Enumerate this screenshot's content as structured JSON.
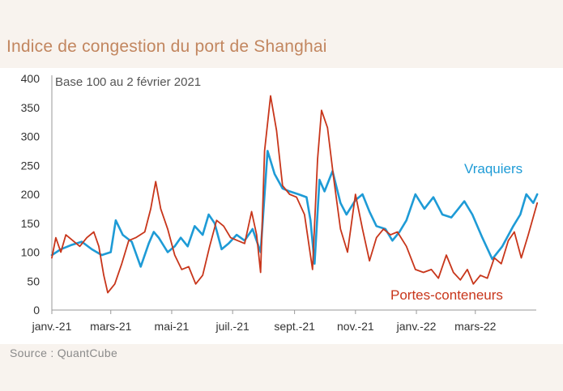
{
  "title": "Indice de congestion du port de Shanghai",
  "source": "Source :  QuantCube",
  "colors": {
    "vraquiers": "#1e9bd6",
    "portes_conteneurs": "#c8361b",
    "title": "#c2865f",
    "background": "#f8f3ee"
  },
  "chart_data": {
    "type": "line",
    "title": "Indice de congestion du port de Shanghai",
    "annotation": "Base 100 au 2 février 2021",
    "xlabel": "",
    "ylabel": "",
    "ylim": [
      0,
      400
    ],
    "xlim": [
      "2021-01-01",
      "2022-05-01"
    ],
    "yticks": [
      "0",
      "50",
      "100",
      "150",
      "200",
      "250",
      "300",
      "350",
      "400"
    ],
    "xticks": [
      {
        "date": "2021-01-01",
        "label": "janv.-21"
      },
      {
        "date": "2021-03-01",
        "label": "mars-21"
      },
      {
        "date": "2021-05-01",
        "label": "mai-21"
      },
      {
        "date": "2021-07-01",
        "label": "juil.-21"
      },
      {
        "date": "2021-09-01",
        "label": "sept.-21"
      },
      {
        "date": "2021-11-01",
        "label": "nov.-21"
      },
      {
        "date": "2022-01-01",
        "label": "janv.-22"
      },
      {
        "date": "2022-03-01",
        "label": "mars-22"
      }
    ],
    "grid": false,
    "legend": "inline labels",
    "series": [
      {
        "name": "Vraquiers",
        "color": "#1e9bd6",
        "points": [
          [
            "2021-01-01",
            95
          ],
          [
            "2021-01-10",
            105
          ],
          [
            "2021-01-20",
            112
          ],
          [
            "2021-01-31",
            118
          ],
          [
            "2021-02-10",
            105
          ],
          [
            "2021-02-20",
            95
          ],
          [
            "2021-03-01",
            100
          ],
          [
            "2021-03-06",
            155
          ],
          [
            "2021-03-13",
            130
          ],
          [
            "2021-03-22",
            118
          ],
          [
            "2021-03-31",
            75
          ],
          [
            "2021-04-08",
            115
          ],
          [
            "2021-04-13",
            135
          ],
          [
            "2021-04-18",
            125
          ],
          [
            "2021-04-27",
            100
          ],
          [
            "2021-05-04",
            110
          ],
          [
            "2021-05-10",
            125
          ],
          [
            "2021-05-17",
            110
          ],
          [
            "2021-05-24",
            145
          ],
          [
            "2021-06-01",
            130
          ],
          [
            "2021-06-07",
            165
          ],
          [
            "2021-06-13",
            150
          ],
          [
            "2021-06-20",
            105
          ],
          [
            "2021-06-27",
            115
          ],
          [
            "2021-07-05",
            130
          ],
          [
            "2021-07-13",
            120
          ],
          [
            "2021-07-21",
            140
          ],
          [
            "2021-07-29",
            100
          ],
          [
            "2021-08-05",
            275
          ],
          [
            "2021-08-12",
            235
          ],
          [
            "2021-08-20",
            210
          ],
          [
            "2021-08-27",
            205
          ],
          [
            "2021-09-05",
            200
          ],
          [
            "2021-09-13",
            195
          ],
          [
            "2021-09-17",
            155
          ],
          [
            "2021-09-21",
            80
          ],
          [
            "2021-09-26",
            225
          ],
          [
            "2021-10-01",
            205
          ],
          [
            "2021-10-09",
            240
          ],
          [
            "2021-10-17",
            185
          ],
          [
            "2021-10-23",
            165
          ],
          [
            "2021-11-01",
            190
          ],
          [
            "2021-11-08",
            200
          ],
          [
            "2021-11-15",
            170
          ],
          [
            "2021-11-22",
            145
          ],
          [
            "2021-12-01",
            140
          ],
          [
            "2021-12-08",
            120
          ],
          [
            "2021-12-15",
            135
          ],
          [
            "2021-12-22",
            155
          ],
          [
            "2021-12-31",
            200
          ],
          [
            "2022-01-09",
            175
          ],
          [
            "2022-01-18",
            195
          ],
          [
            "2022-01-27",
            165
          ],
          [
            "2022-02-05",
            160
          ],
          [
            "2022-02-12",
            175
          ],
          [
            "2022-02-18",
            188
          ],
          [
            "2022-02-26",
            165
          ],
          [
            "2022-03-08",
            125
          ],
          [
            "2022-03-18",
            88
          ],
          [
            "2022-03-28",
            110
          ],
          [
            "2022-04-08",
            145
          ],
          [
            "2022-04-15",
            165
          ],
          [
            "2022-04-21",
            200
          ],
          [
            "2022-04-28",
            185
          ],
          [
            "2022-05-02",
            200
          ]
        ]
      },
      {
        "name": "Portes-conteneurs",
        "color": "#c8361b",
        "points": [
          [
            "2021-01-01",
            90
          ],
          [
            "2021-01-05",
            125
          ],
          [
            "2021-01-10",
            100
          ],
          [
            "2021-01-15",
            130
          ],
          [
            "2021-01-22",
            120
          ],
          [
            "2021-01-29",
            110
          ],
          [
            "2021-02-05",
            125
          ],
          [
            "2021-02-12",
            135
          ],
          [
            "2021-02-17",
            110
          ],
          [
            "2021-02-22",
            60
          ],
          [
            "2021-02-26",
            30
          ],
          [
            "2021-03-05",
            45
          ],
          [
            "2021-03-12",
            80
          ],
          [
            "2021-03-19",
            120
          ],
          [
            "2021-03-26",
            125
          ],
          [
            "2021-04-04",
            135
          ],
          [
            "2021-04-10",
            175
          ],
          [
            "2021-04-15",
            222
          ],
          [
            "2021-04-20",
            175
          ],
          [
            "2021-04-27",
            140
          ],
          [
            "2021-05-04",
            95
          ],
          [
            "2021-05-11",
            70
          ],
          [
            "2021-05-18",
            75
          ],
          [
            "2021-05-25",
            45
          ],
          [
            "2021-06-01",
            60
          ],
          [
            "2021-06-08",
            110
          ],
          [
            "2021-06-15",
            155
          ],
          [
            "2021-06-22",
            145
          ],
          [
            "2021-06-29",
            125
          ],
          [
            "2021-07-06",
            120
          ],
          [
            "2021-07-13",
            115
          ],
          [
            "2021-07-20",
            170
          ],
          [
            "2021-07-25",
            130
          ],
          [
            "2021-07-29",
            65
          ],
          [
            "2021-08-02",
            275
          ],
          [
            "2021-08-08",
            370
          ],
          [
            "2021-08-14",
            310
          ],
          [
            "2021-08-20",
            215
          ],
          [
            "2021-08-27",
            200
          ],
          [
            "2021-09-03",
            195
          ],
          [
            "2021-09-11",
            165
          ],
          [
            "2021-09-19",
            70
          ],
          [
            "2021-09-24",
            260
          ],
          [
            "2021-09-28",
            345
          ],
          [
            "2021-10-04",
            315
          ],
          [
            "2021-10-10",
            230
          ],
          [
            "2021-10-17",
            140
          ],
          [
            "2021-10-24",
            100
          ],
          [
            "2021-11-01",
            200
          ],
          [
            "2021-11-08",
            140
          ],
          [
            "2021-11-15",
            85
          ],
          [
            "2021-11-22",
            125
          ],
          [
            "2021-11-29",
            140
          ],
          [
            "2021-12-06",
            130
          ],
          [
            "2021-12-13",
            135
          ],
          [
            "2021-12-22",
            110
          ],
          [
            "2021-12-31",
            70
          ],
          [
            "2022-01-08",
            65
          ],
          [
            "2022-01-16",
            70
          ],
          [
            "2022-01-23",
            55
          ],
          [
            "2022-01-31",
            95
          ],
          [
            "2022-02-07",
            65
          ],
          [
            "2022-02-14",
            52
          ],
          [
            "2022-02-21",
            70
          ],
          [
            "2022-02-27",
            45
          ],
          [
            "2022-03-06",
            60
          ],
          [
            "2022-03-13",
            55
          ],
          [
            "2022-03-20",
            90
          ],
          [
            "2022-03-27",
            80
          ],
          [
            "2022-04-03",
            120
          ],
          [
            "2022-04-09",
            135
          ],
          [
            "2022-04-16",
            90
          ],
          [
            "2022-04-23",
            130
          ],
          [
            "2022-05-02",
            185
          ]
        ]
      }
    ]
  },
  "labels": {
    "bulk": "Vraquiers",
    "container": "Portes-conteneurs"
  }
}
